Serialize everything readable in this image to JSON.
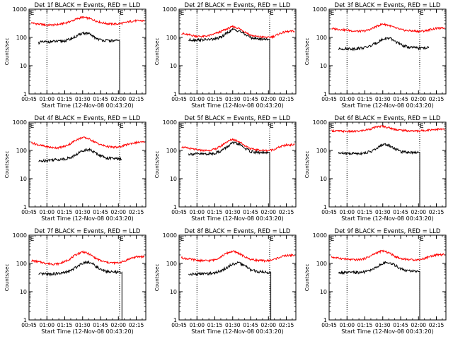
{
  "chart_data": {
    "type": "line",
    "xlabel": "Start Time (12-Nov-08 00:43:20)",
    "ylabel": "Counts/sec",
    "x_ticks": [
      "00:45",
      "01:00",
      "01:15",
      "01:30",
      "01:45",
      "02:00",
      "02:15"
    ],
    "x_tick_minutes": [
      45,
      60,
      75,
      90,
      105,
      120,
      135
    ],
    "x_range_minutes": [
      45,
      143
    ],
    "y_scale": "log",
    "y_ticks": [
      "1",
      "10",
      "100",
      "1000"
    ],
    "y_tick_values": [
      1,
      10,
      100,
      1000
    ],
    "ylim": [
      1,
      1000
    ],
    "vlines_minutes": [
      60,
      121
    ],
    "markers": [
      {
        "label": "E",
        "minute": 46
      },
      {
        "label": "E",
        "minute": 121
      }
    ],
    "colors": {
      "events": "#000000",
      "lld": "#ff0000"
    },
    "sample_x_minutes": [
      47,
      50,
      55,
      60,
      65,
      70,
      75,
      80,
      85,
      90,
      95,
      100,
      105,
      110,
      115,
      120,
      125,
      130,
      135,
      140,
      142
    ],
    "panels": [
      {
        "title": "Det 1f BLACK = Events, RED = LLD",
        "lld": [
          330,
          310,
          290,
          275,
          275,
          290,
          320,
          370,
          450,
          520,
          480,
          400,
          340,
          310,
          300,
          300,
          330,
          370,
          390,
          390,
          380
        ],
        "events_x": [
          53,
          55,
          60,
          65,
          70,
          75,
          80,
          85,
          90,
          95,
          100,
          105,
          110,
          115,
          120
        ],
        "events": [
          65,
          68,
          70,
          72,
          72,
          76,
          88,
          110,
          145,
          135,
          100,
          82,
          78,
          76,
          76
        ],
        "drop_minute": 121
      },
      {
        "title": "Det 2f BLACK = Events, RED = LLD",
        "lld": [
          140,
          130,
          120,
          110,
          108,
          115,
          135,
          160,
          200,
          240,
          210,
          160,
          120,
          108,
          104,
          100,
          110,
          140,
          160,
          165,
          165
        ],
        "events_x": [
          53,
          55,
          60,
          65,
          70,
          75,
          80,
          85,
          90,
          95,
          100,
          105,
          110,
          115,
          120
        ],
        "events": [
          80,
          82,
          82,
          83,
          84,
          88,
          100,
          140,
          190,
          175,
          130,
          100,
          90,
          88,
          88
        ],
        "drop_minute": 121
      },
      {
        "title": "Det 3f BLACK = Events, RED = LLD",
        "lld": [
          205,
          200,
          190,
          180,
          170,
          165,
          170,
          195,
          250,
          300,
          270,
          220,
          190,
          175,
          170,
          165,
          170,
          190,
          210,
          215,
          215
        ],
        "events_x": [
          53,
          55,
          60,
          65,
          70,
          75,
          80,
          85,
          90,
          95,
          100,
          105,
          110,
          115,
          120,
          125,
          129
        ],
        "events": [
          38,
          40,
          40,
          40,
          41,
          44,
          50,
          65,
          85,
          95,
          75,
          55,
          47,
          44,
          42,
          42,
          44
        ]
      },
      {
        "title": "Det 4f BLACK = Events, RED = LLD",
        "lld": [
          190,
          170,
          150,
          135,
          125,
          125,
          140,
          175,
          240,
          290,
          260,
          200,
          160,
          140,
          130,
          130,
          150,
          175,
          190,
          195,
          195
        ],
        "events_x": [
          53,
          55,
          60,
          65,
          70,
          75,
          80,
          85,
          90,
          95,
          100,
          105,
          110,
          115,
          120,
          123
        ],
        "events": [
          40,
          42,
          45,
          47,
          48,
          50,
          56,
          72,
          100,
          110,
          85,
          65,
          55,
          52,
          50,
          50
        ]
      },
      {
        "title": "Det 5f BLACK = Events, RED = LLD",
        "lld": [
          135,
          125,
          115,
          105,
          100,
          100,
          110,
          140,
          200,
          250,
          210,
          150,
          115,
          105,
          100,
          100,
          110,
          135,
          155,
          160,
          160
        ],
        "events_x": [
          53,
          55,
          60,
          65,
          70,
          75,
          80,
          85,
          90,
          95,
          100,
          105,
          110,
          115,
          120
        ],
        "events": [
          75,
          75,
          75,
          75,
          76,
          80,
          95,
          130,
          185,
          170,
          120,
          92,
          85,
          82,
          80
        ],
        "drop_minute": 121
      },
      {
        "title": "Det 6f BLACK = Events, RED = LLD",
        "lld": [
          500,
          490,
          480,
          470,
          470,
          480,
          520,
          580,
          680,
          720,
          640,
          560,
          520,
          500,
          490,
          490,
          510,
          540,
          560,
          560,
          560
        ],
        "events_x": [
          53,
          55,
          60,
          65,
          70,
          75,
          80,
          85,
          90,
          95,
          100,
          105,
          110,
          115,
          120
        ],
        "events": [
          80,
          80,
          78,
          78,
          78,
          82,
          92,
          115,
          165,
          155,
          115,
          92,
          88,
          86,
          86
        ],
        "drop_minute": 121
      },
      {
        "title": "Det 7f BLACK = Events, RED = LLD",
        "lld": [
          125,
          120,
          110,
          100,
          95,
          98,
          115,
          150,
          210,
          260,
          220,
          160,
          125,
          110,
          105,
          105,
          120,
          150,
          170,
          175,
          175
        ],
        "events_x": [
          53,
          55,
          60,
          65,
          70,
          75,
          80,
          85,
          90,
          95,
          100,
          105,
          110,
          115,
          120,
          123
        ],
        "events": [
          40,
          42,
          42,
          43,
          44,
          47,
          55,
          75,
          105,
          115,
          85,
          60,
          52,
          50,
          48,
          48
        ],
        "drop_minute": 123
      },
      {
        "title": "Det 8f BLACK = Events, RED = LLD",
        "lld": [
          160,
          150,
          140,
          130,
          125,
          125,
          135,
          170,
          230,
          270,
          230,
          170,
          140,
          130,
          125,
          125,
          140,
          170,
          190,
          195,
          195
        ],
        "events_x": [
          53,
          55,
          60,
          65,
          70,
          75,
          80,
          85,
          90,
          95,
          100,
          105,
          110,
          115,
          120,
          122
        ],
        "events": [
          40,
          42,
          42,
          43,
          44,
          46,
          55,
          70,
          95,
          105,
          82,
          60,
          52,
          50,
          48,
          48
        ],
        "drop_minute": 122
      },
      {
        "title": "Det 9f BLACK = Events, RED = LLD",
        "lld": [
          170,
          160,
          150,
          140,
          135,
          135,
          150,
          185,
          240,
          280,
          240,
          180,
          150,
          140,
          135,
          135,
          150,
          180,
          200,
          205,
          205
        ],
        "events_x": [
          53,
          55,
          60,
          65,
          70,
          75,
          80,
          85,
          90,
          95,
          100,
          105,
          110,
          115,
          120
        ],
        "events": [
          45,
          47,
          47,
          48,
          48,
          50,
          58,
          75,
          100,
          110,
          88,
          65,
          56,
          53,
          52
        ],
        "drop_minute": 121
      }
    ]
  }
}
